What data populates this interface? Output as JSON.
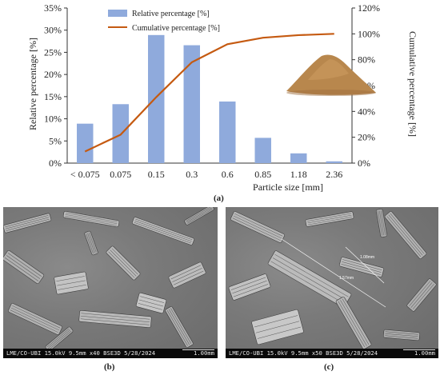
{
  "chart_data": {
    "type": "bar",
    "categories": [
      "< 0.075",
      "0.075",
      "0.15",
      "0.3",
      "0.6",
      "0.85",
      "1.18",
      "2.36"
    ],
    "xlabel": "Particle size [mm]",
    "ylabel_left": "Relative percentage [%]",
    "ylabel_right": "Cumulative percentage [%]",
    "ylim_left": [
      0,
      35
    ],
    "ylim_right": [
      0,
      120
    ],
    "yticks_left": [
      "0%",
      "5%",
      "10%",
      "15%",
      "20%",
      "25%",
      "30%",
      "35%"
    ],
    "yticks_right": [
      "0%",
      "20%",
      "40%",
      "60%",
      "80%",
      "100%",
      "120%"
    ],
    "legend_position": "top",
    "series": [
      {
        "name": "Relative percentage [%]",
        "kind": "bar",
        "axis": "left",
        "color": "#8faadc",
        "values": [
          8.9,
          13.3,
          28.9,
          26.6,
          13.9,
          5.7,
          2.2,
          0.4
        ]
      },
      {
        "name": "Cumulative percentage [%]",
        "kind": "line",
        "axis": "right",
        "color": "#c55a11",
        "values": [
          9,
          22,
          51,
          78,
          92,
          97,
          99,
          100
        ]
      }
    ]
  },
  "captions": {
    "a": "(a)",
    "b": "(b)",
    "c": "(c)"
  },
  "sem_b": {
    "metadata": "LME/CO-UBI 15.0kV 9.5mm x40 BSE3D 5/28/2024",
    "scale": "1.00mm"
  },
  "sem_c": {
    "metadata": "LME/CO-UBI 15.0kV 9.5mm x50 BSE3D 5/28/2024",
    "scale": "1.00mm",
    "measure_1": "1.57mm",
    "measure_2": "1.08mm"
  },
  "colors": {
    "sand": "#b8874d",
    "sem_bg": "#777777"
  }
}
